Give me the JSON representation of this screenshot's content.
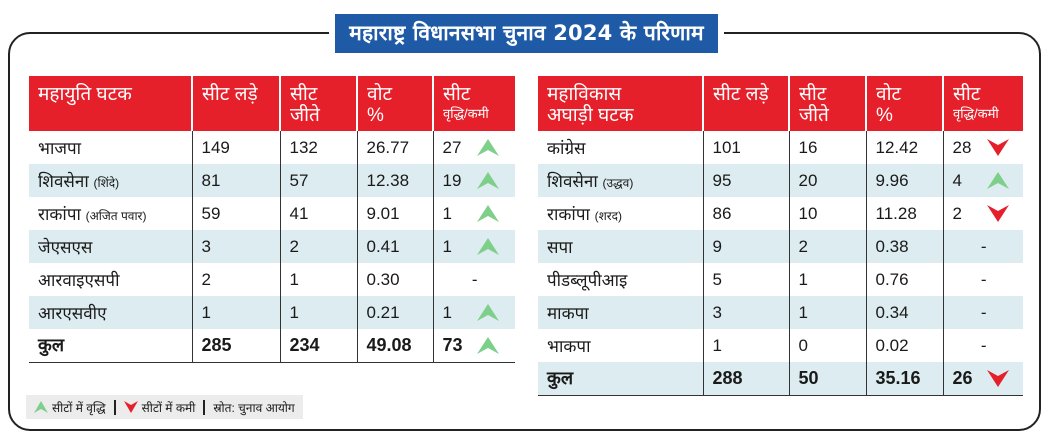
{
  "title": "महाराष्ट्र विधानसभा चुनाव 2024 के परिणाम",
  "colors": {
    "header_red": "#e5202a",
    "title_blue": "#1f5aa6",
    "row_alt": "#dcecf0",
    "up_green": "#7dcf8a",
    "down_red": "#e5202a"
  },
  "left_table": {
    "headers": {
      "alliance": "महायुति घटक",
      "contested": "सीट लड़े",
      "won_1": "सीट",
      "won_2": "जीते",
      "vote_1": "वोट",
      "vote_2": "%",
      "change_1": "सीट",
      "change_2": "वृद्धि/कमी"
    },
    "rows": [
      {
        "party": "भाजपा",
        "sub": "",
        "contested": "149",
        "won": "132",
        "vote": "26.77",
        "change": "27",
        "trend": "up"
      },
      {
        "party": "शिवसेना",
        "sub": "(शिंदे)",
        "contested": "81",
        "won": "57",
        "vote": "12.38",
        "change": "19",
        "trend": "up"
      },
      {
        "party": "राकांपा",
        "sub": "(अजित पवार)",
        "contested": "59",
        "won": "41",
        "vote": "9.01",
        "change": "1",
        "trend": "up"
      },
      {
        "party": "जेएसएस",
        "sub": "",
        "contested": "3",
        "won": "2",
        "vote": "0.41",
        "change": "1",
        "trend": "up"
      },
      {
        "party": "आरवाइएसपी",
        "sub": "",
        "contested": "2",
        "won": "1",
        "vote": "0.30",
        "change": "-",
        "trend": "none"
      },
      {
        "party": "आरएसवीए",
        "sub": "",
        "contested": "1",
        "won": "1",
        "vote": "0.21",
        "change": "1",
        "trend": "up"
      }
    ],
    "total": {
      "label": "कुल",
      "contested": "285",
      "won": "234",
      "vote": "49.08",
      "change": "73",
      "trend": "up"
    }
  },
  "right_table": {
    "headers": {
      "alliance_1": "महाविकास",
      "alliance_2": "अघाड़ी घटक",
      "contested": "सीट लड़े",
      "won_1": "सीट",
      "won_2": "जीते",
      "vote_1": "वोट",
      "vote_2": "%",
      "change_1": "सीट",
      "change_2": "वृद्धि/कमी"
    },
    "rows": [
      {
        "party": "कांग्रेस",
        "sub": "",
        "contested": "101",
        "won": "16",
        "vote": "12.42",
        "change": "28",
        "trend": "down"
      },
      {
        "party": "शिवसेना",
        "sub": "(उद्धव)",
        "contested": "95",
        "won": "20",
        "vote": "9.96",
        "change": "4",
        "trend": "up"
      },
      {
        "party": "राकांपा",
        "sub": "(शरद)",
        "contested": "86",
        "won": "10",
        "vote": "11.28",
        "change": "2",
        "trend": "down"
      },
      {
        "party": "सपा",
        "sub": "",
        "contested": "9",
        "won": "2",
        "vote": "0.38",
        "change": "-",
        "trend": "none"
      },
      {
        "party": "पीडब्लूपीआइ",
        "sub": "",
        "contested": "5",
        "won": "1",
        "vote": "0.76",
        "change": "-",
        "trend": "none"
      },
      {
        "party": "माकपा",
        "sub": "",
        "contested": "3",
        "won": "1",
        "vote": "0.34",
        "change": "-",
        "trend": "none"
      },
      {
        "party": "भाकपा",
        "sub": "",
        "contested": "1",
        "won": "0",
        "vote": "0.02",
        "change": "-",
        "trend": "none"
      }
    ],
    "total": {
      "label": "कुल",
      "contested": "288",
      "won": "50",
      "vote": "35.16",
      "change": "26",
      "trend": "down"
    }
  },
  "legend": {
    "up": "सीटों में वृद्धि",
    "down": "सीटों में कमी",
    "source": "स्रोत: चुनाव आयोग"
  }
}
